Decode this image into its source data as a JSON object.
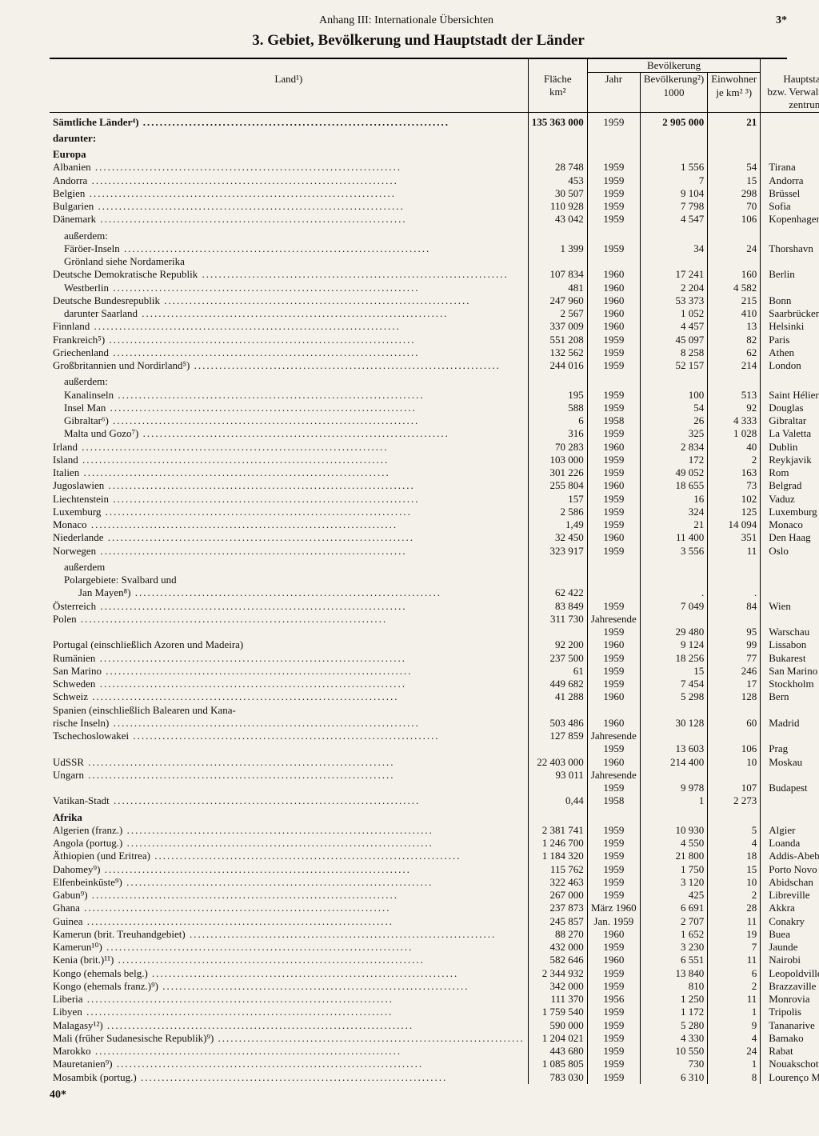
{
  "header": {
    "center": "Anhang III: Internationale Übersichten",
    "pgno": "3*"
  },
  "title": "3. Gebiet, Bevölkerung und Hauptstadt der Länder",
  "cols": {
    "land": "Land¹)",
    "area": "Fläche\nkm²",
    "pop_group": "Bevölkerung",
    "year": "Jahr",
    "pop": "Bevölkerung²)\n1000",
    "dens": "Einwohner\nje km² ³)",
    "cap": "Hauptstadt\nbzw. Verwaltungs-\nzentrum"
  },
  "footer_left": "40*",
  "rows": [
    {
      "t": "row",
      "spanlabel": "Sämtliche Länder⁴)",
      "fill": true,
      "bold": true,
      "area": "135 363 000",
      "year": "1959",
      "pop": "2 905 000",
      "dens": "21",
      "cap": ""
    },
    {
      "t": "sub",
      "label": "darunter:",
      "bold": true
    },
    {
      "t": "sub",
      "label": "Europa",
      "bold": true
    },
    {
      "t": "row",
      "label": "Albanien",
      "fill": true,
      "area": "28 748",
      "year": "1959",
      "pop": "1 556",
      "dens": "54",
      "cap": "Tirana"
    },
    {
      "t": "row",
      "label": "Andorra",
      "fill": true,
      "area": "453",
      "year": "1959",
      "pop": "7",
      "dens": "15",
      "cap": "Andorra"
    },
    {
      "t": "row",
      "label": "Belgien",
      "fill": true,
      "area": "30 507",
      "year": "1959",
      "pop": "9 104",
      "dens": "298",
      "cap": "Brüssel"
    },
    {
      "t": "row",
      "label": "Bulgarien",
      "fill": true,
      "area": "110 928",
      "year": "1959",
      "pop": "7 798",
      "dens": "70",
      "cap": "Sofia"
    },
    {
      "t": "row",
      "label": "Dänemark",
      "fill": true,
      "area": "43 042",
      "year": "1959",
      "pop": "4 547",
      "dens": "106",
      "cap": "Kopenhagen"
    },
    {
      "t": "sub",
      "label": "außerdem:",
      "indent": 1
    },
    {
      "t": "row",
      "label": "Färöer-Inseln",
      "fill": true,
      "indent": 1,
      "area": "1 399",
      "year": "1959",
      "pop": "34",
      "dens": "24",
      "cap": "Thorshavn"
    },
    {
      "t": "row",
      "label": "Grönland siehe Nordamerika",
      "indent": 1
    },
    {
      "t": "row",
      "label": "Deutsche Demokratische Republik",
      "fill": true,
      "area": "107 834",
      "year": "1960",
      "pop": "17 241",
      "dens": "160",
      "cap": "Berlin"
    },
    {
      "t": "row",
      "label": "Westberlin",
      "fill": true,
      "indent": 1,
      "area": "481",
      "year": "1960",
      "pop": "2 204",
      "dens": "4 582",
      "cap": ""
    },
    {
      "t": "row",
      "label": "Deutsche Bundesrepublik",
      "fill": true,
      "area": "247 960",
      "year": "1960",
      "pop": "53 373",
      "dens": "215",
      "cap": "Bonn"
    },
    {
      "t": "row",
      "label": "darunter Saarland",
      "fill": true,
      "indent": 1,
      "area": "2 567",
      "year": "1960",
      "pop": "1 052",
      "dens": "410",
      "cap": "Saarbrücken"
    },
    {
      "t": "row",
      "label": "Finnland",
      "fill": true,
      "area": "337 009",
      "year": "1960",
      "pop": "4 457",
      "dens": "13",
      "cap": "Helsinki"
    },
    {
      "t": "row",
      "label": "Frankreich⁵)",
      "fill": true,
      "area": "551 208",
      "year": "1959",
      "pop": "45 097",
      "dens": "82",
      "cap": "Paris"
    },
    {
      "t": "row",
      "label": "Griechenland",
      "fill": true,
      "area": "132 562",
      "year": "1959",
      "pop": "8 258",
      "dens": "62",
      "cap": "Athen"
    },
    {
      "t": "row",
      "label": "Großbritannien und Nordirland⁵)",
      "fill": true,
      "area": "244 016",
      "year": "1959",
      "pop": "52 157",
      "dens": "214",
      "cap": "London"
    },
    {
      "t": "sub",
      "label": "außerdem:",
      "indent": 1
    },
    {
      "t": "row",
      "label": "Kanalinseln",
      "fill": true,
      "indent": 1,
      "area": "195",
      "year": "1959",
      "pop": "100",
      "dens": "513",
      "cap": "Saint Hélier"
    },
    {
      "t": "row",
      "label": "Insel Man",
      "fill": true,
      "indent": 1,
      "area": "588",
      "year": "1959",
      "pop": "54",
      "dens": "92",
      "cap": "Douglas"
    },
    {
      "t": "row",
      "label": "Gibraltar⁶)",
      "fill": true,
      "indent": 1,
      "area": "6",
      "year": "1958",
      "pop": "26",
      "dens": "4 333",
      "cap": "Gibraltar"
    },
    {
      "t": "row",
      "label": "Malta und Gozo⁷)",
      "fill": true,
      "indent": 1,
      "area": "316",
      "year": "1959",
      "pop": "325",
      "dens": "1 028",
      "cap": "La Valetta"
    },
    {
      "t": "row",
      "label": "Irland",
      "fill": true,
      "area": "70 283",
      "year": "1960",
      "pop": "2 834",
      "dens": "40",
      "cap": "Dublin"
    },
    {
      "t": "row",
      "label": "Island",
      "fill": true,
      "area": "103 000",
      "year": "1959",
      "pop": "172",
      "dens": "2",
      "cap": "Reykjavik"
    },
    {
      "t": "row",
      "label": "Italien",
      "fill": true,
      "area": "301 226",
      "year": "1959",
      "pop": "49 052",
      "dens": "163",
      "cap": "Rom"
    },
    {
      "t": "row",
      "label": "Jugoslawien",
      "fill": true,
      "area": "255 804",
      "year": "1960",
      "pop": "18 655",
      "dens": "73",
      "cap": "Belgrad"
    },
    {
      "t": "row",
      "label": "Liechtenstein",
      "fill": true,
      "area": "157",
      "year": "1959",
      "pop": "16",
      "dens": "102",
      "cap": "Vaduz"
    },
    {
      "t": "row",
      "label": "Luxemburg",
      "fill": true,
      "area": "2 586",
      "year": "1959",
      "pop": "324",
      "dens": "125",
      "cap": "Luxemburg"
    },
    {
      "t": "row",
      "label": "Monaco",
      "fill": true,
      "area": "1,49",
      "year": "1959",
      "pop": "21",
      "dens": "14 094",
      "cap": "Monaco"
    },
    {
      "t": "row",
      "label": "Niederlande",
      "fill": true,
      "area": "32 450",
      "year": "1960",
      "pop": "11 400",
      "dens": "351",
      "cap": "Den Haag"
    },
    {
      "t": "row",
      "label": "Norwegen",
      "fill": true,
      "area": "323 917",
      "year": "1959",
      "pop": "3 556",
      "dens": "11",
      "cap": "Oslo"
    },
    {
      "t": "sub",
      "label": "außerdem",
      "indent": 1
    },
    {
      "t": "row",
      "label": "Polargebiete: Svalbard und",
      "indent": 1
    },
    {
      "t": "row",
      "label": "Jan Mayen⁸)",
      "fill": true,
      "indent": 2,
      "area": "62 422",
      "year": "",
      "pop": ".",
      "dens": ".",
      "cap": ""
    },
    {
      "t": "row",
      "label": "Österreich",
      "fill": true,
      "area": "83 849",
      "year": "1959",
      "pop": "7 049",
      "dens": "84",
      "cap": "Wien"
    },
    {
      "t": "row",
      "label": "Polen",
      "fill": true,
      "area": "311 730",
      "year": "Jahresende",
      "pop": "",
      "dens": "",
      "cap": ""
    },
    {
      "t": "row",
      "label": "",
      "area": "",
      "year": "1959",
      "pop": "29 480",
      "dens": "95",
      "cap": "Warschau"
    },
    {
      "t": "row",
      "label": "Portugal (einschließlich Azoren und Madeira)",
      "area": "92 200",
      "year": "1960",
      "pop": "9 124",
      "dens": "99",
      "cap": "Lissabon"
    },
    {
      "t": "row",
      "label": "Rumänien",
      "fill": true,
      "area": "237 500",
      "year": "1959",
      "pop": "18 256",
      "dens": "77",
      "cap": "Bukarest"
    },
    {
      "t": "row",
      "label": "San Marino",
      "fill": true,
      "area": "61",
      "year": "1959",
      "pop": "15",
      "dens": "246",
      "cap": "San Marino"
    },
    {
      "t": "row",
      "label": "Schweden",
      "fill": true,
      "area": "449 682",
      "year": "1959",
      "pop": "7 454",
      "dens": "17",
      "cap": "Stockholm"
    },
    {
      "t": "row",
      "label": "Schweiz",
      "fill": true,
      "area": "41 288",
      "year": "1960",
      "pop": "5 298",
      "dens": "128",
      "cap": "Bern"
    },
    {
      "t": "row",
      "label": "Spanien (einschließlich Balearen und Kana-"
    },
    {
      "t": "row",
      "label": "rische Inseln)",
      "fill": true,
      "indent": 0,
      "area": "503 486",
      "year": "1960",
      "pop": "30 128",
      "dens": "60",
      "cap": "Madrid"
    },
    {
      "t": "row",
      "label": "Tschechoslowakei",
      "fill": true,
      "area": "127 859",
      "year": "Jahresende",
      "pop": "",
      "dens": "",
      "cap": ""
    },
    {
      "t": "row",
      "label": "",
      "area": "",
      "year": "1959",
      "pop": "13 603",
      "dens": "106",
      "cap": "Prag"
    },
    {
      "t": "row",
      "label": "UdSSR",
      "fill": true,
      "area": "22 403 000",
      "year": "1960",
      "pop": "214 400",
      "dens": "10",
      "cap": "Moskau"
    },
    {
      "t": "row",
      "label": "Ungarn",
      "fill": true,
      "area": "93 011",
      "year": "Jahresende",
      "pop": "",
      "dens": "",
      "cap": ""
    },
    {
      "t": "row",
      "label": "",
      "area": "",
      "year": "1959",
      "pop": "9 978",
      "dens": "107",
      "cap": "Budapest"
    },
    {
      "t": "row",
      "label": "Vatikan-Stadt",
      "fill": true,
      "area": "0,44",
      "year": "1958",
      "pop": "1",
      "dens": "2 273",
      "cap": ""
    },
    {
      "t": "sub",
      "label": "Afrika",
      "bold": true
    },
    {
      "t": "row",
      "label": "Algerien (franz.)",
      "fill": true,
      "area": "2 381 741",
      "year": "1959",
      "pop": "10 930",
      "dens": "5",
      "cap": "Algier"
    },
    {
      "t": "row",
      "label": "Angola (portug.)",
      "fill": true,
      "area": "1 246 700",
      "year": "1959",
      "pop": "4 550",
      "dens": "4",
      "cap": "Loanda"
    },
    {
      "t": "row",
      "label": "Äthiopien (und Eritrea)",
      "fill": true,
      "area": "1 184 320",
      "year": "1959",
      "pop": "21 800",
      "dens": "18",
      "cap": "Addis-Abeba"
    },
    {
      "t": "row",
      "label": "Dahomey⁹)",
      "fill": true,
      "area": "115 762",
      "year": "1959",
      "pop": "1 750",
      "dens": "15",
      "cap": "Porto Novo"
    },
    {
      "t": "row",
      "label": "Elfenbeinküste⁹)",
      "fill": true,
      "area": "322 463",
      "year": "1959",
      "pop": "3 120",
      "dens": "10",
      "cap": "Abidschan"
    },
    {
      "t": "row",
      "label": "Gabun⁹)",
      "fill": true,
      "area": "267 000",
      "year": "1959",
      "pop": "425",
      "dens": "2",
      "cap": "Libreville"
    },
    {
      "t": "row",
      "label": "Ghana",
      "fill": true,
      "area": "237 873",
      "year": "März 1960",
      "pop": "6 691",
      "dens": "28",
      "cap": "Akkra"
    },
    {
      "t": "row",
      "label": "Guinea",
      "fill": true,
      "area": "245 857",
      "year": "Jan. 1959",
      "pop": "2 707",
      "dens": "11",
      "cap": "Conakry"
    },
    {
      "t": "row",
      "label": "Kamerun (brit. Treuhandgebiet)",
      "fill": true,
      "area": "88 270",
      "year": "1960",
      "pop": "1 652",
      "dens": "19",
      "cap": "Buea"
    },
    {
      "t": "row",
      "label": "Kamerun¹⁰)",
      "fill": true,
      "area": "432 000",
      "year": "1959",
      "pop": "3 230",
      "dens": "7",
      "cap": "Jaunde"
    },
    {
      "t": "row",
      "label": "Kenia (brit.)¹¹)",
      "fill": true,
      "area": "582 646",
      "year": "1960",
      "pop": "6 551",
      "dens": "11",
      "cap": "Nairobi"
    },
    {
      "t": "row",
      "label": "Kongo (ehemals belg.)",
      "fill": true,
      "area": "2 344 932",
      "year": "1959",
      "pop": "13 840",
      "dens": "6",
      "cap": "Leopoldville"
    },
    {
      "t": "row",
      "label": "Kongo (ehemals franz.)⁹)",
      "fill": true,
      "area": "342 000",
      "year": "1959",
      "pop": "810",
      "dens": "2",
      "cap": "Brazzaville"
    },
    {
      "t": "row",
      "label": "Liberia",
      "fill": true,
      "area": "111 370",
      "year": "1956",
      "pop": "1 250",
      "dens": "11",
      "cap": "Monrovia"
    },
    {
      "t": "row",
      "label": "Libyen",
      "fill": true,
      "area": "1 759 540",
      "year": "1959",
      "pop": "1 172",
      "dens": "1",
      "cap": "Tripolis"
    },
    {
      "t": "row",
      "label": "Malagasy¹²)",
      "fill": true,
      "area": "590 000",
      "year": "1959",
      "pop": "5 280",
      "dens": "9",
      "cap": "Tananarive"
    },
    {
      "t": "row",
      "label": "Mali (früher Sudanesische Republik)⁹)",
      "fill": true,
      "area": "1 204 021",
      "year": "1959",
      "pop": "4 330",
      "dens": "4",
      "cap": "Bamako"
    },
    {
      "t": "row",
      "label": "Marokko",
      "fill": true,
      "area": "443 680",
      "year": "1959",
      "pop": "10 550",
      "dens": "24",
      "cap": "Rabat"
    },
    {
      "t": "row",
      "label": "Mauretanien⁹)",
      "fill": true,
      "area": "1 085 805",
      "year": "1959",
      "pop": "730",
      "dens": "1",
      "cap": "Nouakschott"
    },
    {
      "t": "row",
      "label": "Mosambik (portug.)",
      "fill": true,
      "area": "783 030",
      "year": "1959",
      "pop": "6 310",
      "dens": "8",
      "cap": "Lourenço Marques"
    }
  ],
  "colwidths": {
    "land": 300,
    "area": 100,
    "year": 100,
    "pop": 120,
    "dens": 110,
    "cap": 170
  },
  "colors": {
    "bg": "#f4f1ea",
    "ink": "#111111"
  }
}
